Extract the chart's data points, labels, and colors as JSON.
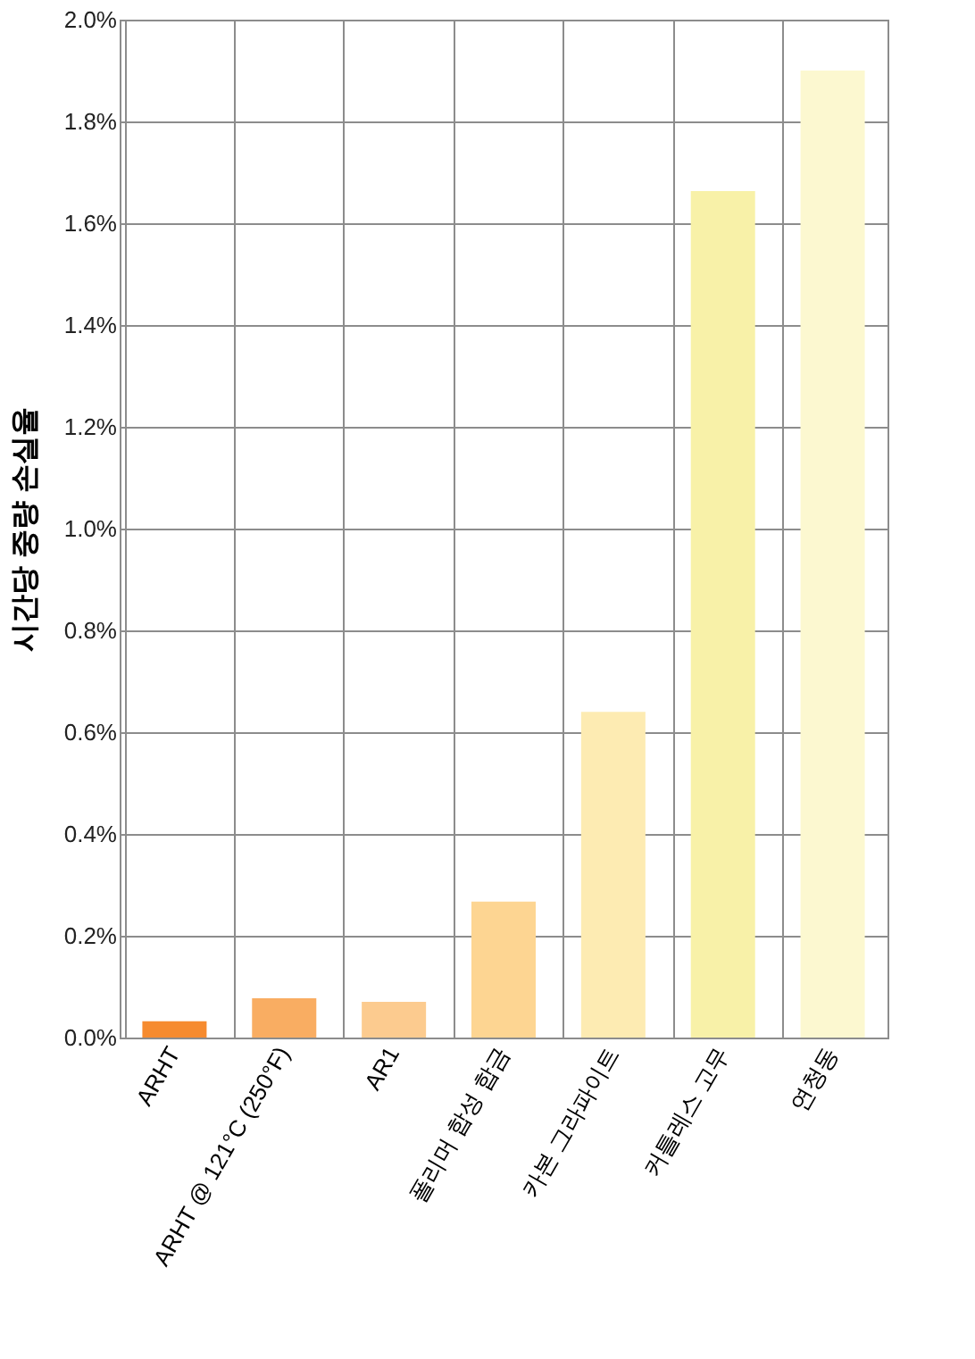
{
  "chart_data": {
    "type": "bar",
    "ylabel": "시간당 중량 손실율",
    "categories": [
      "ARHT",
      "ARHT @ 121°C (250°F)",
      "AR1",
      "폴리머 합성 합금",
      "카본 그라파이트",
      "커틀레스 고무",
      "연청동"
    ],
    "values": [
      0.032,
      0.077,
      0.07,
      0.267,
      0.64,
      1.663,
      1.9
    ],
    "colors": [
      "#f68b2f",
      "#f9ad62",
      "#fccb8f",
      "#fdd592",
      "#fdebb2",
      "#f8f1a8",
      "#fcf8d0"
    ],
    "ylim": [
      0,
      2.0
    ],
    "yticks": [
      {
        "value": 0,
        "label": "0.0%"
      },
      {
        "value": 0.2,
        "label": "0.2%"
      },
      {
        "value": 0.4,
        "label": "0.4%"
      },
      {
        "value": 0.6,
        "label": "0.6%"
      },
      {
        "value": 0.8,
        "label": "0.8%"
      },
      {
        "value": 1.0,
        "label": "1.0%"
      },
      {
        "value": 1.2,
        "label": "1.2%"
      },
      {
        "value": 1.4,
        "label": "1.4%"
      },
      {
        "value": 1.6,
        "label": "1.6%"
      },
      {
        "value": 1.8,
        "label": "1.8%"
      },
      {
        "value": 2.0,
        "label": "2.0%"
      }
    ],
    "grid": true
  }
}
